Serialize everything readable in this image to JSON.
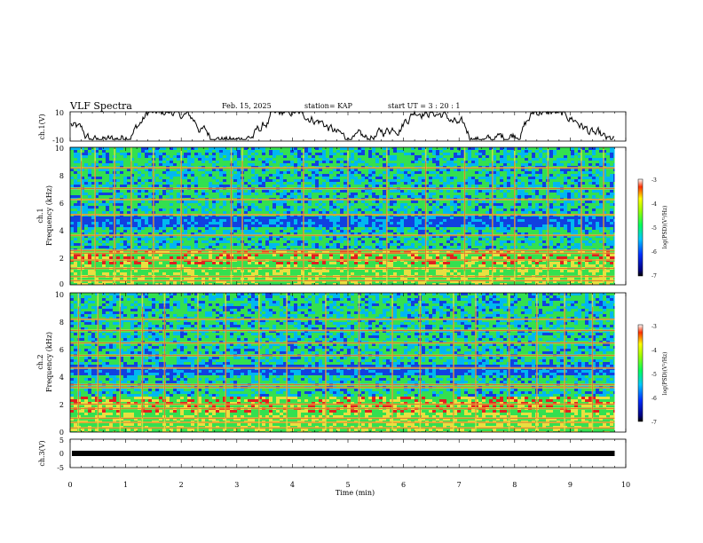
{
  "header": {
    "title": "VLF Spectra",
    "date": "Feb. 15, 2025",
    "station": "station= KAP",
    "start_ut": "start  UT  =   3  : 20 : 1"
  },
  "chart_data": [
    {
      "id": "ch1_waveform",
      "type": "line",
      "ylabel": "ch.1(V)",
      "ylim": [
        -10,
        10
      ],
      "yticks": [
        "10",
        "-10"
      ],
      "xlim": [
        0,
        10
      ],
      "x_extent_min": 9.8,
      "description_series": "noisy waveform oscillating roughly between -9 and 10 V"
    },
    {
      "id": "ch1_spectrogram",
      "type": "heatmap",
      "ylabel_line1": "ch.1",
      "ylabel_line2": "Frequency  (kHz)",
      "ylim": [
        0,
        10
      ],
      "yticks": [
        "0",
        "2",
        "4",
        "6",
        "8",
        "10"
      ],
      "xlim": [
        0,
        10
      ],
      "colorbar": {
        "label": "log(PSD)(V²/Hz)",
        "range": [
          -7,
          -3
        ],
        "ticks": [
          "-3",
          "-4",
          "-5",
          "-6",
          "-7"
        ]
      },
      "bands_khz": [
        0.3,
        0.6,
        1.2,
        1.8,
        2.3,
        2.5,
        3.6,
        5.1,
        6.2,
        7.0,
        8.5
      ],
      "vertical_spikes_min": [
        0.2,
        0.45,
        0.8,
        1.1,
        1.5,
        2.0,
        2.9,
        3.1,
        4.2,
        5.0,
        5.7,
        6.4,
        7.1,
        7.6,
        8.0,
        8.6,
        9.2,
        9.6
      ]
    },
    {
      "id": "ch2_spectrogram",
      "type": "heatmap",
      "ylabel_line1": "ch.2",
      "ylabel_line2": "Frequency  (kHz)",
      "ylim": [
        0,
        10
      ],
      "yticks": [
        "0",
        "2",
        "4",
        "6",
        "8",
        "10"
      ],
      "xlim": [
        0,
        10
      ],
      "colorbar": {
        "label": "log(PSD)(V²/Hz)",
        "range": [
          -7,
          -3
        ],
        "ticks": [
          "-3",
          "-4",
          "-5",
          "-6",
          "-7"
        ]
      },
      "bands_khz": [
        0.3,
        0.7,
        1.0,
        1.7,
        2.0,
        3.2,
        3.4,
        4.6,
        5.5,
        6.4,
        7.3,
        8.1
      ],
      "vertical_spikes_min": [
        0.15,
        0.5,
        0.9,
        1.3,
        1.7,
        2.3,
        2.8,
        3.4,
        3.9,
        4.6,
        5.2,
        5.8,
        6.3,
        6.9,
        7.3,
        7.9,
        8.4,
        8.9,
        9.4
      ]
    },
    {
      "id": "ch3_waveform",
      "type": "line",
      "ylabel": "ch.3(V)",
      "ylim": [
        -5,
        5
      ],
      "yticks": [
        "5",
        "0",
        "-5"
      ],
      "xlim": [
        0,
        10
      ],
      "x_extent_min": 9.8,
      "constant_level": 0,
      "description_series": "flat thick line near 0 V"
    }
  ],
  "xaxis": {
    "label": "Time  (min)",
    "ticks": [
      "0",
      "1",
      "2",
      "3",
      "4",
      "5",
      "6",
      "7",
      "8",
      "9",
      "10"
    ]
  },
  "colors": {
    "spec_blue": "#1040e0",
    "spec_cyan": "#00b8f0",
    "spec_green": "#33e050",
    "spec_yellow": "#e8e040",
    "spec_red": "#e02020"
  }
}
